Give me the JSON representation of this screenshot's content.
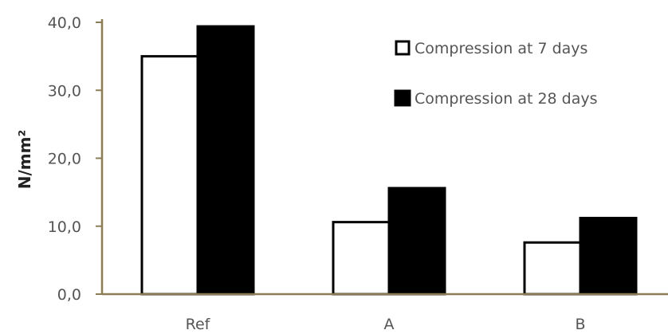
{
  "chart_data": {
    "type": "bar",
    "categories": [
      "Ref",
      "A",
      "B"
    ],
    "series": [
      {
        "name": "Compression at 7 days",
        "values": [
          35.0,
          10.6,
          7.6
        ],
        "fill": "#ffffff",
        "stroke": "#000000"
      },
      {
        "name": "Compression at 28 days",
        "values": [
          39.4,
          15.6,
          11.2
        ],
        "fill": "#000000",
        "stroke": "#000000"
      }
    ],
    "xlabel": "",
    "ylabel": "N/mm²",
    "ylim": [
      0,
      40
    ],
    "yticks": [
      "0,0",
      "10,0",
      "20,0",
      "30,0",
      "40,0"
    ],
    "ytick_values": [
      0,
      10,
      20,
      30,
      40
    ],
    "grid": false,
    "legend_position": "top-right",
    "axis_color": "#8b7d55"
  }
}
